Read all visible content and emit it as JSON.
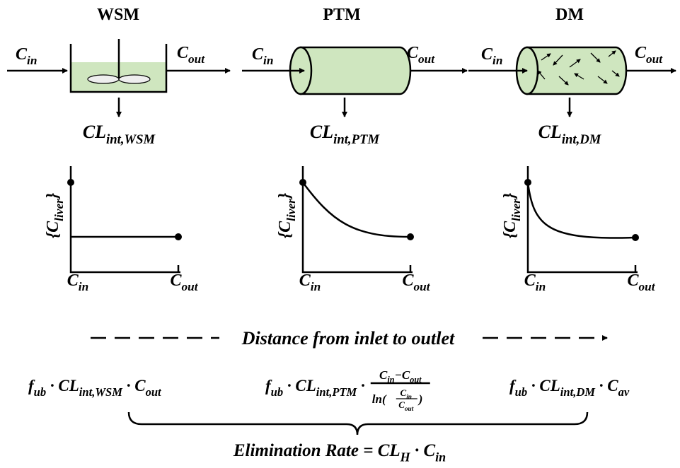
{
  "models": [
    {
      "title": "WSM",
      "inlet": [
        {
          "main": "C",
          "sub": "in"
        }
      ],
      "outlet": [
        {
          "main": "C",
          "sub": "out"
        }
      ],
      "clearance": [
        {
          "main": "CL",
          "sub": "int,WSM"
        }
      ],
      "graph": {
        "y_label": [
          {
            "main": "{C",
            "sub": "liver",
            "tail": "}"
          }
        ],
        "x_start": [
          {
            "main": "C",
            "sub": "in"
          }
        ],
        "x_end": [
          {
            "main": "C",
            "sub": "out"
          }
        ]
      }
    },
    {
      "title": "PTM",
      "inlet": [
        {
          "main": "C",
          "sub": "in"
        }
      ],
      "outlet": [
        {
          "main": "C",
          "sub": "out"
        }
      ],
      "clearance": [
        {
          "main": "CL",
          "sub": "int,PTM"
        }
      ],
      "graph": {
        "y_label": [
          {
            "main": "{C",
            "sub": "liver",
            "tail": "}"
          }
        ],
        "x_start": [
          {
            "main": "C",
            "sub": "in"
          }
        ],
        "x_end": [
          {
            "main": "C",
            "sub": "out"
          }
        ]
      }
    },
    {
      "title": "DM",
      "inlet": [
        {
          "main": "C",
          "sub": "in"
        }
      ],
      "outlet": [
        {
          "main": "C",
          "sub": "out"
        }
      ],
      "clearance": [
        {
          "main": "CL",
          "sub": "int,DM"
        }
      ],
      "graph": {
        "y_label": [
          {
            "main": "{C",
            "sub": "liver",
            "tail": "}"
          }
        ],
        "x_start": [
          {
            "main": "C",
            "sub": "in"
          }
        ],
        "x_end": [
          {
            "main": "C",
            "sub": "out"
          }
        ]
      }
    }
  ],
  "axis_caption": "Distance from inlet to outlet",
  "rates": [
    {
      "terms": [
        {
          "main": "f",
          "sub": "ub"
        },
        {
          "main": " · CL",
          "sub": "int,WSM"
        },
        {
          "main": " · C",
          "sub": "out"
        }
      ]
    },
    {
      "terms": [
        {
          "main": "f",
          "sub": "ub"
        },
        {
          "main": " · CL",
          "sub": "int,PTM"
        },
        {
          "main": " ·"
        }
      ],
      "fraction": {
        "numerator": [
          {
            "main": "C",
            "sub": "in"
          },
          {
            "main": "−C",
            "sub": "out"
          }
        ],
        "denominator": {
          "prefix": "ln(",
          "numerator": [
            {
              "main": "C",
              "sub": "in"
            }
          ],
          "denominator": [
            {
              "main": "C",
              "sub": "out"
            }
          ],
          "suffix": ")"
        }
      }
    },
    {
      "terms": [
        {
          "main": "f",
          "sub": "ub"
        },
        {
          "main": " · CL",
          "sub": "int,DM"
        },
        {
          "main": " · C",
          "sub": "av"
        }
      ]
    }
  ],
  "total": [
    {
      "main": "Elimination Rate = CL",
      "sub": "H"
    },
    {
      "main": " · C",
      "sub": "in"
    }
  ]
}
